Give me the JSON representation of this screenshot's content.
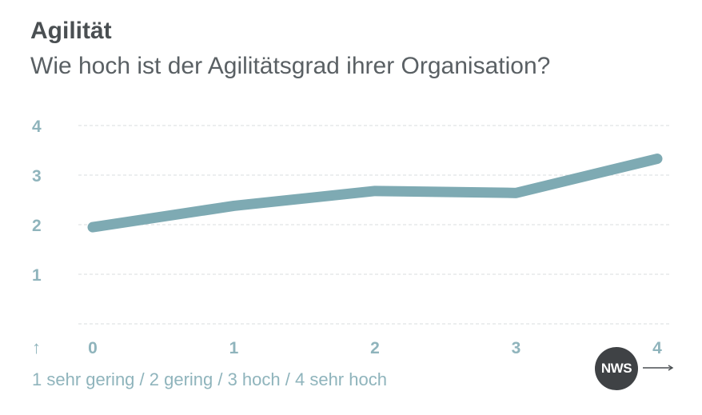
{
  "header": {
    "title": "Agilität",
    "subtitle": "Wie hoch ist der Agilitätsgrad ihrer Organisation?"
  },
  "footer": {
    "scale_note": "1 sehr gering / 2 gering / 3 hoch / 4 sehr hoch",
    "up_arrow": "↑",
    "logo_text": "NWS"
  },
  "colors": {
    "line": "#7eaab3",
    "tick": "#8fb4bc",
    "grid": "#d9dedf",
    "logo_bg": "#3f4245"
  },
  "chart_data": {
    "type": "line",
    "x": [
      0,
      1,
      2,
      3,
      4
    ],
    "series": [
      {
        "values": [
          1.95,
          2.38,
          2.68,
          2.64,
          3.33
        ]
      }
    ],
    "xticks": [
      "0",
      "1",
      "2",
      "3",
      "4"
    ],
    "yticks": [
      "1",
      "2",
      "3",
      "4"
    ],
    "xlim": [
      0,
      4
    ],
    "ylim": [
      0,
      4
    ],
    "grid": true
  }
}
